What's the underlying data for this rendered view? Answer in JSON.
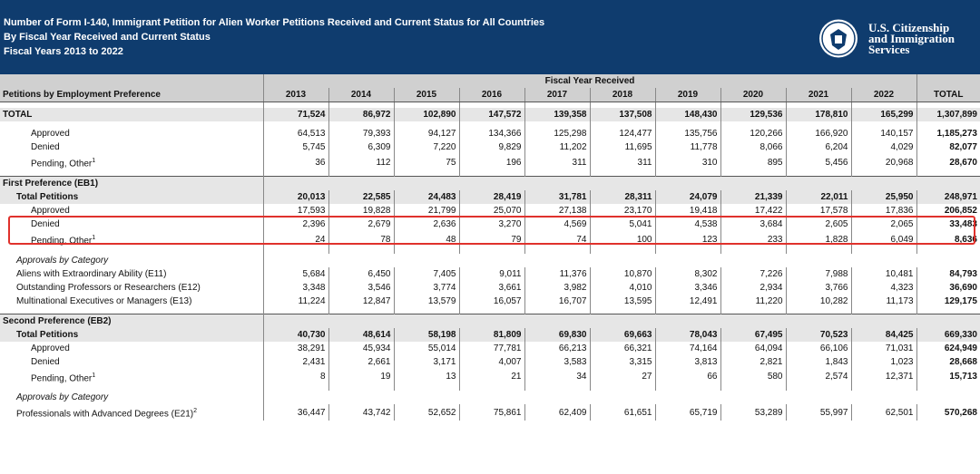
{
  "header": {
    "title_lines": [
      "Number of Form I-140, Immigrant Petition for Alien Worker Petitions Received and Current Status for All Countries",
      "By Fiscal Year Received and Current Status",
      "Fiscal Years 2013 to 2022"
    ],
    "agency_lines": [
      "U.S. Citizenship",
      "and Immigration",
      "Services"
    ],
    "brand_color": "#0f3c6e"
  },
  "table": {
    "group_header": "Fiscal Year Received",
    "row_header": "Petitions by Employment Preference",
    "years": [
      "2013",
      "2014",
      "2015",
      "2016",
      "2017",
      "2018",
      "2019",
      "2020",
      "2021",
      "2022"
    ],
    "total_label": "TOTAL",
    "rows": [
      {
        "label": "TOTAL",
        "style": "total",
        "values": [
          "71,524",
          "86,972",
          "102,890",
          "147,572",
          "139,358",
          "137,508",
          "148,430",
          "129,536",
          "178,810",
          "165,299",
          "1,307,899"
        ]
      },
      {
        "label": "Approved",
        "style": "ind2",
        "values": [
          "64,513",
          "79,393",
          "94,127",
          "134,366",
          "125,298",
          "124,477",
          "135,756",
          "120,266",
          "166,920",
          "140,157",
          "1,185,273"
        ]
      },
      {
        "label": "Denied",
        "style": "ind2",
        "values": [
          "5,745",
          "6,309",
          "7,220",
          "9,829",
          "11,202",
          "11,695",
          "11,778",
          "8,066",
          "6,204",
          "4,029",
          "82,077"
        ]
      },
      {
        "label": "Pending, Other",
        "sup": "1",
        "style": "ind2",
        "values": [
          "36",
          "112",
          "75",
          "196",
          "311",
          "311",
          "310",
          "895",
          "5,456",
          "20,968",
          "28,670"
        ]
      },
      {
        "label": "First Preference (EB1)",
        "style": "section"
      },
      {
        "label": "Total Petitions",
        "style": "shaded",
        "values": [
          "20,013",
          "22,585",
          "24,483",
          "28,419",
          "31,781",
          "28,311",
          "24,079",
          "21,339",
          "22,011",
          "25,950",
          "248,971"
        ]
      },
      {
        "label": "Approved",
        "style": "ind2",
        "values": [
          "17,593",
          "19,828",
          "21,799",
          "25,070",
          "27,138",
          "23,170",
          "19,418",
          "17,422",
          "17,578",
          "17,836",
          "206,852"
        ]
      },
      {
        "label": "Denied",
        "style": "ind2",
        "values": [
          "2,396",
          "2,679",
          "2,636",
          "3,270",
          "4,569",
          "5,041",
          "4,538",
          "3,684",
          "2,605",
          "2,065",
          "33,483"
        ]
      },
      {
        "label": "Pending, Other",
        "sup": "1",
        "style": "ind2",
        "values": [
          "24",
          "78",
          "48",
          "79",
          "74",
          "100",
          "123",
          "233",
          "1,828",
          "6,049",
          "8,636"
        ]
      },
      {
        "label": "Approvals by Category",
        "style": "category"
      },
      {
        "label": "Aliens with Extraordinary Ability (E11)",
        "style": "ind1",
        "values": [
          "5,684",
          "6,450",
          "7,405",
          "9,011",
          "11,376",
          "10,870",
          "8,302",
          "7,226",
          "7,988",
          "10,481",
          "84,793"
        ]
      },
      {
        "label": "Outstanding Professors or Researchers (E12)",
        "style": "ind1",
        "values": [
          "3,348",
          "3,546",
          "3,774",
          "3,661",
          "3,982",
          "4,010",
          "3,346",
          "2,934",
          "3,766",
          "4,323",
          "36,690"
        ]
      },
      {
        "label": "Multinational Executives or Managers (E13)",
        "style": "ind1",
        "values": [
          "11,224",
          "12,847",
          "13,579",
          "16,057",
          "16,707",
          "13,595",
          "12,491",
          "11,220",
          "10,282",
          "11,173",
          "129,175"
        ]
      },
      {
        "label": "Second Preference (EB2)",
        "style": "section"
      },
      {
        "label": "Total Petitions",
        "style": "shaded",
        "values": [
          "40,730",
          "48,614",
          "58,198",
          "81,809",
          "69,830",
          "69,663",
          "78,043",
          "67,495",
          "70,523",
          "84,425",
          "669,330"
        ]
      },
      {
        "label": "Approved",
        "style": "ind2",
        "values": [
          "38,291",
          "45,934",
          "55,014",
          "77,781",
          "66,213",
          "66,321",
          "74,164",
          "64,094",
          "66,106",
          "71,031",
          "624,949"
        ]
      },
      {
        "label": "Denied",
        "style": "ind2",
        "values": [
          "2,431",
          "2,661",
          "3,171",
          "4,007",
          "3,583",
          "3,315",
          "3,813",
          "2,821",
          "1,843",
          "1,023",
          "28,668"
        ]
      },
      {
        "label": "Pending, Other",
        "sup": "1",
        "style": "ind2",
        "values": [
          "8",
          "19",
          "13",
          "21",
          "34",
          "27",
          "66",
          "580",
          "2,574",
          "12,371",
          "15,713"
        ]
      },
      {
        "label": "Approvals by Category",
        "style": "category"
      },
      {
        "label": "Professionals with Advanced Degrees (E21)",
        "sup": "2",
        "style": "ind1",
        "values": [
          "36,447",
          "43,742",
          "52,652",
          "75,861",
          "62,409",
          "61,651",
          "65,719",
          "53,289",
          "55,997",
          "62,501",
          "570,268"
        ]
      }
    ]
  },
  "highlight_color": "#e0312c"
}
